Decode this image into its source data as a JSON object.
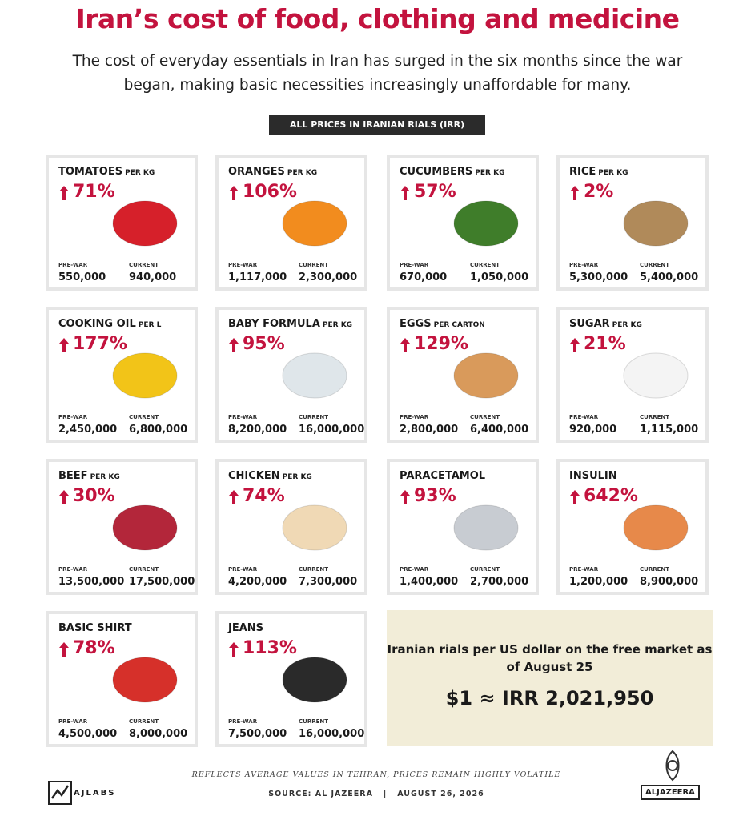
{
  "header": {
    "title": "Iran’s cost of food, clothing and medicine",
    "subtitle": "The cost of everyday essentials in Iran has surged in the six months since the war began, making basic necessities increasingly unaffordable for many.",
    "badge": "ALL PRICES IN IRANIAN RIALS (IRR)"
  },
  "labels": {
    "prewar": "PRE-WAR",
    "current": "CURRENT"
  },
  "items": [
    {
      "name": "TOMATOES",
      "unit": "PER KG",
      "change": "71%",
      "prewar": "550,000",
      "current": "940,000"
    },
    {
      "name": "ORANGES",
      "unit": "PER KG",
      "change": "106%",
      "prewar": "1,117,000",
      "current": "2,300,000"
    },
    {
      "name": "CUCUMBERS",
      "unit": "PER KG",
      "change": "57%",
      "prewar": "670,000",
      "current": "1,050,000"
    },
    {
      "name": "RICE",
      "unit": "PER KG",
      "change": "2%",
      "prewar": "5,300,000",
      "current": "5,400,000"
    },
    {
      "name": "COOKING OIL",
      "unit": "PER L",
      "change": "177%",
      "prewar": "2,450,000",
      "current": "6,800,000"
    },
    {
      "name": "BABY FORMULA",
      "unit": "PER KG",
      "change": "95%",
      "prewar": "8,200,000",
      "current": "16,000,000"
    },
    {
      "name": "EGGS",
      "unit": "PER CARTON",
      "change": "129%",
      "prewar": "2,800,000",
      "current": "6,400,000"
    },
    {
      "name": "SUGAR",
      "unit": "PER KG",
      "change": "21%",
      "prewar": "920,000",
      "current": "1,115,000"
    },
    {
      "name": "BEEF",
      "unit": "PER KG",
      "change": "30%",
      "prewar": "13,500,000",
      "current": "17,500,000"
    },
    {
      "name": "CHICKEN",
      "unit": "PER KG",
      "change": "74%",
      "prewar": "4,200,000",
      "current": "7,300,000"
    },
    {
      "name": "PARACETAMOL",
      "unit": null,
      "change": "93%",
      "prewar": "1,400,000",
      "current": "2,700,000"
    },
    {
      "name": "INSULIN",
      "unit": null,
      "change": "642%",
      "prewar": "1,200,000",
      "current": "8,900,000"
    },
    {
      "name": "BASIC SHIRT",
      "unit": null,
      "change": "78%",
      "prewar": "4,500,000",
      "current": "8,000,000"
    },
    {
      "name": "JEANS",
      "unit": null,
      "change": "113%",
      "prewar": "7,500,000",
      "current": "16,000,000"
    }
  ],
  "exchange": {
    "label": "Iranian rials per US dollar on the free market as of August 25",
    "value": "$1 ≈ IRR 2,021,950"
  },
  "footer": {
    "note": "REFLECTS AVERAGE VALUES IN TEHRAN, PRICES REMAIN HIGHLY VOLATILE",
    "source": "SOURCE: AL JAZEERA   |   AUGUST 26, 2026",
    "left_logo": "AJLABS",
    "right_logo": "ALJAZEERA"
  }
}
